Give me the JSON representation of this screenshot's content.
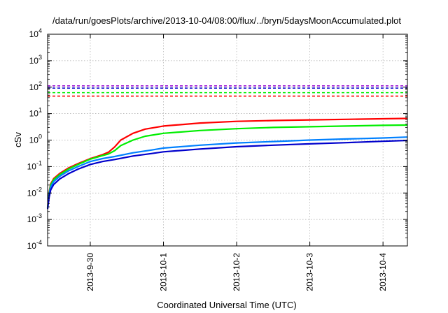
{
  "chart_data": {
    "type": "line",
    "title": "/data/run/goesPlots/archive/2013-10-04/08:00/flux/../bryn/5daysMoonAccumulated.plot",
    "xlabel": "Coordinated Universal Time (UTC)",
    "ylabel": "cSv",
    "y_scale": "log",
    "ylim": [
      0.0001,
      10000
    ],
    "y_ticks": [
      {
        "value": 0.0001,
        "base": "10",
        "exp": "-4"
      },
      {
        "value": 0.001,
        "base": "10",
        "exp": "-3"
      },
      {
        "value": 0.01,
        "base": "10",
        "exp": "-2"
      },
      {
        "value": 0.1,
        "base": "10",
        "exp": "-1"
      },
      {
        "value": 1,
        "base": "10",
        "exp": "0"
      },
      {
        "value": 10,
        "base": "10",
        "exp": "1"
      },
      {
        "value": 100,
        "base": "10",
        "exp": "2"
      },
      {
        "value": 1000,
        "base": "10",
        "exp": "3"
      },
      {
        "value": 10000,
        "base": "10",
        "exp": "4"
      }
    ],
    "xlim": [
      "2013-09-29 10:00",
      "2013-10-04 08:00"
    ],
    "x_ticks": [
      {
        "value": "2013-09-30 00:00",
        "label": "2013-9-30"
      },
      {
        "value": "2013-10-01 00:00",
        "label": "2013-10-1"
      },
      {
        "value": "2013-10-02 00:00",
        "label": "2013-10-2"
      },
      {
        "value": "2013-10-03 00:00",
        "label": "2013-10-3"
      },
      {
        "value": "2013-10-04 00:00",
        "label": "2013-10-4"
      }
    ],
    "grid": true,
    "thresholds": [
      {
        "color": "#ff0000",
        "value": 46
      },
      {
        "color": "#00ee00",
        "value": 62
      },
      {
        "color": "#0000cc",
        "value": 92
      },
      {
        "color": "#9400d3",
        "value": 112
      }
    ],
    "series": [
      {
        "color": "#ff0000",
        "points": [
          [
            "2013-09-29 10:00",
            0.0028
          ],
          [
            "2013-09-29 10:30",
            0.011
          ],
          [
            "2013-09-29 11:00",
            0.022
          ],
          [
            "2013-09-29 12:00",
            0.035
          ],
          [
            "2013-09-29 14:00",
            0.055
          ],
          [
            "2013-09-29 17:00",
            0.09
          ],
          [
            "2013-09-29 20:00",
            0.13
          ],
          [
            "2013-09-30 00:00",
            0.2
          ],
          [
            "2013-09-30 04:00",
            0.28
          ],
          [
            "2013-09-30 06:00",
            0.35
          ],
          [
            "2013-09-30 08:00",
            0.55
          ],
          [
            "2013-09-30 10:00",
            1.0
          ],
          [
            "2013-09-30 14:00",
            1.8
          ],
          [
            "2013-09-30 18:00",
            2.6
          ],
          [
            "2013-10-01 00:00",
            3.4
          ],
          [
            "2013-10-01 12:00",
            4.4
          ],
          [
            "2013-10-02 00:00",
            5.1
          ],
          [
            "2013-10-02 12:00",
            5.5
          ],
          [
            "2013-10-03 00:00",
            5.8
          ],
          [
            "2013-10-03 12:00",
            6.1
          ],
          [
            "2013-10-04 00:00",
            6.4
          ],
          [
            "2013-10-04 08:00",
            6.6
          ]
        ]
      },
      {
        "color": "#00ee00",
        "points": [
          [
            "2013-09-29 10:00",
            0.0028
          ],
          [
            "2013-09-29 10:30",
            0.01
          ],
          [
            "2013-09-29 11:00",
            0.02
          ],
          [
            "2013-09-29 12:00",
            0.032
          ],
          [
            "2013-09-29 14:00",
            0.05
          ],
          [
            "2013-09-29 17:00",
            0.082
          ],
          [
            "2013-09-29 20:00",
            0.12
          ],
          [
            "2013-09-30 00:00",
            0.19
          ],
          [
            "2013-09-30 04:00",
            0.26
          ],
          [
            "2013-09-30 06:00",
            0.3
          ],
          [
            "2013-09-30 08:00",
            0.4
          ],
          [
            "2013-09-30 10:00",
            0.62
          ],
          [
            "2013-09-30 14:00",
            1.0
          ],
          [
            "2013-09-30 18:00",
            1.4
          ],
          [
            "2013-10-01 00:00",
            1.8
          ],
          [
            "2013-10-01 12:00",
            2.3
          ],
          [
            "2013-10-02 00:00",
            2.7
          ],
          [
            "2013-10-02 12:00",
            3.0
          ],
          [
            "2013-10-03 00:00",
            3.2
          ],
          [
            "2013-10-03 12:00",
            3.4
          ],
          [
            "2013-10-04 00:00",
            3.6
          ],
          [
            "2013-10-04 08:00",
            3.7
          ]
        ]
      },
      {
        "color": "#0080ff",
        "points": [
          [
            "2013-09-29 10:00",
            0.0028
          ],
          [
            "2013-09-29 10:30",
            0.009
          ],
          [
            "2013-09-29 11:00",
            0.017
          ],
          [
            "2013-09-29 12:00",
            0.027
          ],
          [
            "2013-09-29 14:00",
            0.043
          ],
          [
            "2013-09-29 17:00",
            0.07
          ],
          [
            "2013-09-29 20:00",
            0.1
          ],
          [
            "2013-09-30 00:00",
            0.155
          ],
          [
            "2013-09-30 04:00",
            0.2
          ],
          [
            "2013-09-30 08:00",
            0.24
          ],
          [
            "2013-09-30 14:00",
            0.33
          ],
          [
            "2013-09-30 20:00",
            0.42
          ],
          [
            "2013-10-01 00:00",
            0.5
          ],
          [
            "2013-10-01 12:00",
            0.64
          ],
          [
            "2013-10-02 00:00",
            0.78
          ],
          [
            "2013-10-02 12:00",
            0.88
          ],
          [
            "2013-10-03 00:00",
            1.0
          ],
          [
            "2013-10-03 12:00",
            1.1
          ],
          [
            "2013-10-04 00:00",
            1.2
          ],
          [
            "2013-10-04 08:00",
            1.3
          ]
        ]
      },
      {
        "color": "#0000cc",
        "points": [
          [
            "2013-09-29 10:00",
            0.0025
          ],
          [
            "2013-09-29 10:30",
            0.007
          ],
          [
            "2013-09-29 11:00",
            0.013
          ],
          [
            "2013-09-29 12:00",
            0.021
          ],
          [
            "2013-09-29 14:00",
            0.034
          ],
          [
            "2013-09-29 17:00",
            0.055
          ],
          [
            "2013-09-29 20:00",
            0.08
          ],
          [
            "2013-09-30 00:00",
            0.12
          ],
          [
            "2013-09-30 04:00",
            0.155
          ],
          [
            "2013-09-30 08:00",
            0.185
          ],
          [
            "2013-09-30 14:00",
            0.25
          ],
          [
            "2013-09-30 20:00",
            0.31
          ],
          [
            "2013-10-01 00:00",
            0.36
          ],
          [
            "2013-10-01 12:00",
            0.46
          ],
          [
            "2013-10-02 00:00",
            0.56
          ],
          [
            "2013-10-02 12:00",
            0.64
          ],
          [
            "2013-10-03 00:00",
            0.72
          ],
          [
            "2013-10-03 12:00",
            0.8
          ],
          [
            "2013-10-04 00:00",
            0.9
          ],
          [
            "2013-10-04 08:00",
            0.97
          ]
        ]
      }
    ]
  }
}
